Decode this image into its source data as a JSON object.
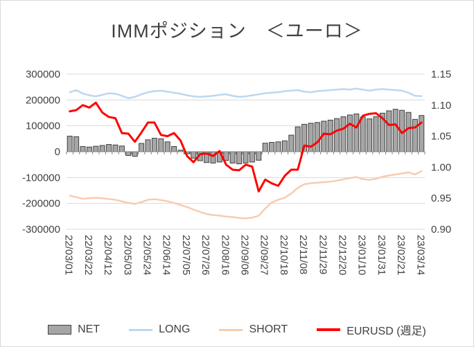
{
  "colors": {
    "net_fill": "#a6a6a6",
    "net_border": "#404040",
    "long": "#bdd7ee",
    "short": "#f8cbad",
    "eurusd": "#ff0000",
    "grid": "#d9d9d9",
    "zero_axis": "#808080",
    "axis_text": "#404040",
    "title_text": "#3f3f3f",
    "background": "#ffffff"
  },
  "legend": [
    {
      "label": "NET",
      "swatch": "gray-bar"
    },
    {
      "label": "LONG",
      "swatch": "light-blue-line"
    },
    {
      "label": "SHORT",
      "swatch": "peach-line"
    },
    {
      "label": "EURUSD (週足)",
      "swatch": "red-line"
    }
  ],
  "chart_data": {
    "type": "combo-bar-line",
    "title": "IMMポジション　＜ユーロ＞",
    "grid": "horizontal",
    "legend_position": "bottom",
    "x_label_every": 3,
    "x": [
      "22/03/01",
      "22/03/08",
      "22/03/15",
      "22/03/22",
      "22/03/29",
      "22/04/05",
      "22/04/12",
      "22/04/19",
      "22/04/26",
      "22/05/03",
      "22/05/10",
      "22/05/17",
      "22/05/24",
      "22/05/31",
      "22/06/07",
      "22/06/14",
      "22/06/21",
      "22/06/28",
      "22/07/05",
      "22/07/12",
      "22/07/19",
      "22/07/26",
      "22/08/02",
      "22/08/09",
      "22/08/16",
      "22/08/23",
      "22/08/30",
      "22/09/06",
      "22/09/13",
      "22/09/20",
      "22/09/27",
      "22/10/04",
      "22/10/11",
      "22/10/18",
      "22/10/25",
      "22/11/01",
      "22/11/08",
      "22/11/15",
      "22/11/22",
      "22/11/29",
      "22/12/06",
      "22/12/13",
      "22/12/20",
      "22/12/27",
      "23/01/03",
      "23/01/10",
      "23/01/17",
      "23/01/24",
      "23/01/31",
      "23/02/07",
      "23/02/14",
      "23/02/21",
      "23/02/28",
      "23/03/07",
      "23/03/14"
    ],
    "left_axis": {
      "min": -300000,
      "max": 300000,
      "step": 100000,
      "tick_values": [
        300000,
        200000,
        100000,
        0,
        -100000,
        -200000,
        -300000
      ],
      "tick_labels": [
        "300000",
        "200000",
        "100000",
        "0",
        "-100000",
        "-200000",
        "-300000"
      ]
    },
    "right_axis": {
      "min": 0.9,
      "max": 1.15,
      "step": 0.05,
      "tick_values": [
        1.15,
        1.1,
        1.05,
        1.0,
        0.95,
        0.9
      ],
      "tick_labels": [
        "1.15",
        "1.10",
        "1.05",
        "1.00",
        "0.95",
        "0.90"
      ]
    },
    "series": [
      {
        "name": "NET",
        "type": "bar",
        "axis": "left",
        "color": "#a6a6a6",
        "values": [
          60000,
          58000,
          20000,
          18000,
          21000,
          24000,
          28000,
          26000,
          22000,
          -15000,
          -18000,
          32000,
          46000,
          52000,
          50000,
          38000,
          20000,
          6000,
          -8000,
          -25000,
          -35000,
          -42000,
          -44000,
          -40000,
          -34000,
          -44000,
          -47000,
          -44000,
          -40000,
          -33000,
          33000,
          36000,
          38000,
          42000,
          64000,
          96000,
          106000,
          110000,
          113000,
          118000,
          122000,
          128000,
          135000,
          142000,
          146000,
          134000,
          127000,
          135000,
          149000,
          158000,
          164000,
          160000,
          152000,
          125000,
          140000
        ]
      },
      {
        "name": "LONG",
        "type": "line",
        "axis": "left",
        "color": "#bdd7ee",
        "values": [
          230000,
          238000,
          225000,
          218000,
          214000,
          220000,
          226000,
          224000,
          216000,
          207000,
          212000,
          222000,
          230000,
          234000,
          236000,
          232000,
          228000,
          224000,
          218000,
          214000,
          212000,
          214000,
          216000,
          220000,
          222000,
          216000,
          212000,
          214000,
          218000,
          222000,
          226000,
          228000,
          230000,
          234000,
          236000,
          238000,
          232000,
          230000,
          234000,
          236000,
          238000,
          240000,
          242000,
          240000,
          244000,
          240000,
          236000,
          240000,
          242000,
          240000,
          238000,
          236000,
          228000,
          216000,
          215000
        ]
      },
      {
        "name": "SHORT",
        "type": "line",
        "axis": "left",
        "color": "#f8cbad",
        "values": [
          -170000,
          -176000,
          -182000,
          -180000,
          -178000,
          -180000,
          -183000,
          -186000,
          -192000,
          -198000,
          -202000,
          -195000,
          -186000,
          -184000,
          -187000,
          -192000,
          -198000,
          -206000,
          -214000,
          -224000,
          -233000,
          -241000,
          -245000,
          -247000,
          -251000,
          -253000,
          -256000,
          -258000,
          -255000,
          -248000,
          -220000,
          -196000,
          -186000,
          -178000,
          -162000,
          -140000,
          -126000,
          -122000,
          -120000,
          -118000,
          -116000,
          -112000,
          -107000,
          -102000,
          -98000,
          -106000,
          -109000,
          -105000,
          -97000,
          -92000,
          -88000,
          -84000,
          -80000,
          -88000,
          -75000
        ]
      },
      {
        "name": "EURUSD (週足)",
        "type": "line",
        "axis": "right",
        "color": "#ff0000",
        "values": [
          1.09,
          1.092,
          1.1,
          1.096,
          1.104,
          1.088,
          1.081,
          1.079,
          1.055,
          1.054,
          1.041,
          1.056,
          1.072,
          1.072,
          1.052,
          1.05,
          1.055,
          1.043,
          1.018,
          1.008,
          1.021,
          1.022,
          1.018,
          1.026,
          1.004,
          0.996,
          0.995,
          1.004,
          1.001,
          0.961,
          0.98,
          0.974,
          0.97,
          0.986,
          0.996,
          0.996,
          1.035,
          1.033,
          1.04,
          1.054,
          1.053,
          1.059,
          1.062,
          1.07,
          1.064,
          1.083,
          1.086,
          1.087,
          1.079,
          1.068,
          1.069,
          1.055,
          1.063,
          1.064,
          1.072
        ]
      }
    ]
  }
}
